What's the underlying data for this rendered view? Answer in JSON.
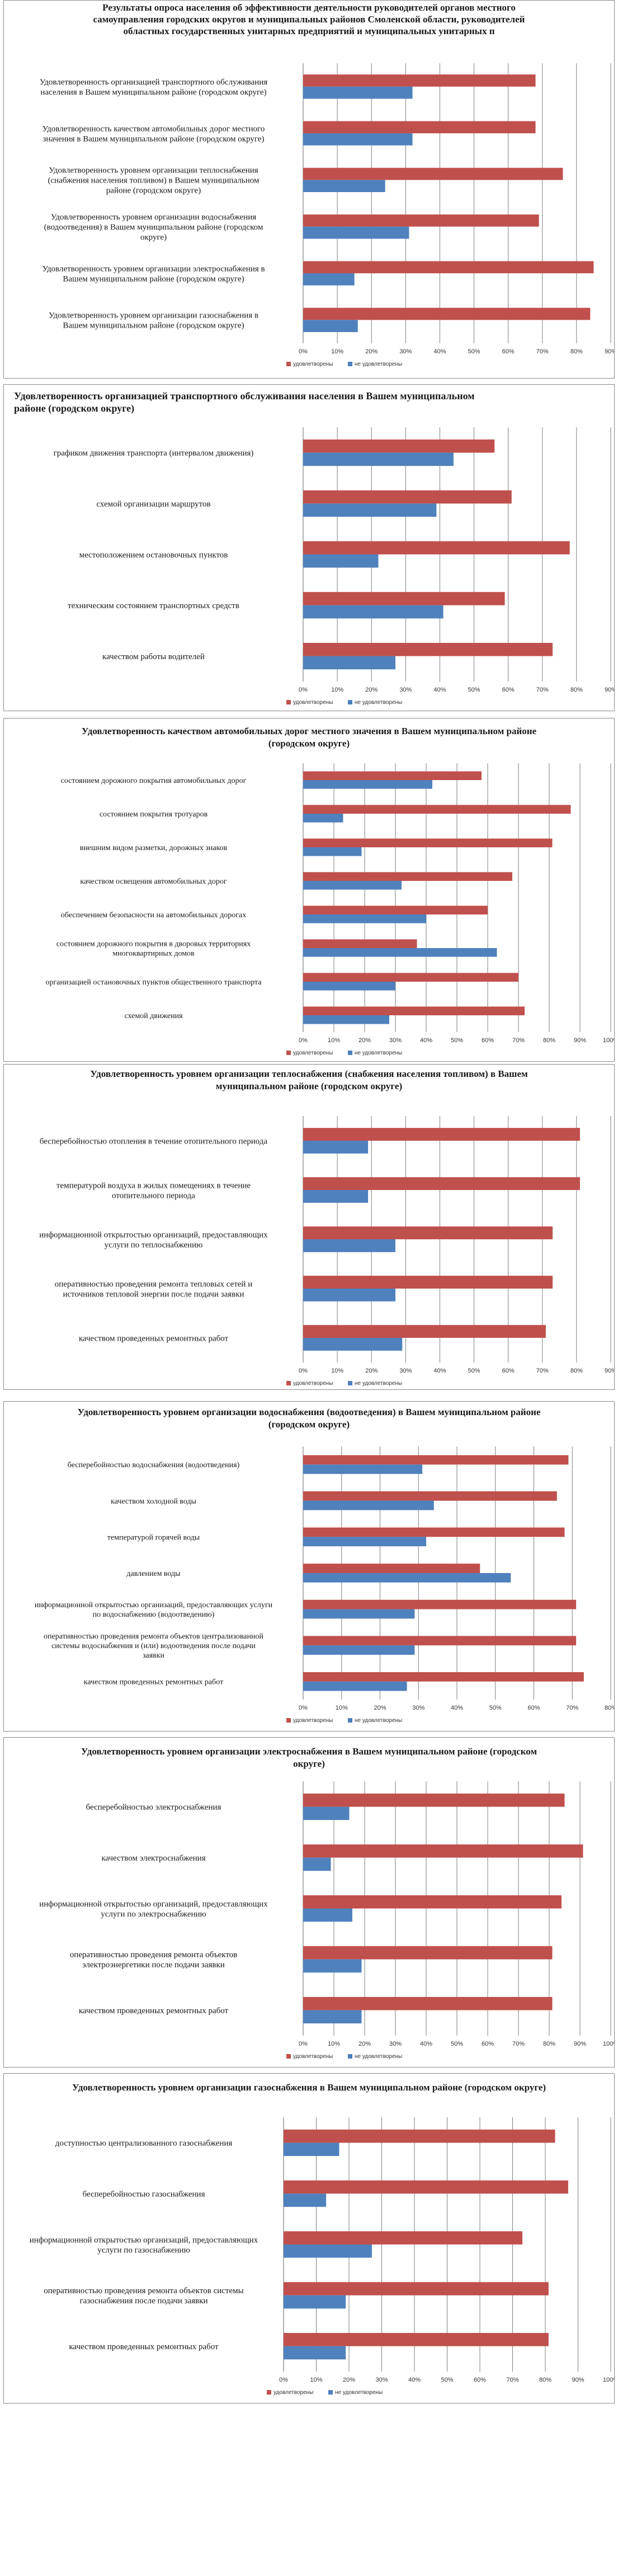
{
  "colors": {
    "satisfied": "#C0504D",
    "not_satisfied": "#4F81BD",
    "grid": "#7f7f7f",
    "axis": "#7f7f7f"
  },
  "legend": {
    "satisfied": "удовлетворены",
    "not_satisfied": "не удовлетворены"
  },
  "chart_data": [
    {
      "type": "bar",
      "orientation": "horizontal",
      "title": "Результаты опроса населения об эффективности деятельности руководителей органов местного самоуправления городских округов и муниципальных районов Смоленской области, руководителей областных государственных унитарных предприятий и муниципальных унитарных п",
      "categories": [
        "Удовлетворенность организацией транспортного обслуживания населения в Вашем муниципальном районе (городском округе)",
        "Удовлетворенность качеством автомобильных дорог местного значения в Вашем муниципальном районе (городском округе)",
        "Удовлетворенность уровнем организации теплоснабжения (снабжения населения топливом) в Вашем муниципальном районе (городском округе)",
        "Удовлетворенность уровнем организации водоснабжения (водоотведения) в Вашем муниципальном районе (городском округе)",
        "Удовлетворенность уровнем организации электроснабжения в Вашем муниципальном районе (городском округе)",
        "Удовлетворенность уровнем организации газоснабжения в Вашем муниципальном районе (городском округе)"
      ],
      "series": [
        {
          "name": "удовлетворены",
          "values": [
            68,
            68,
            76,
            69,
            85,
            84
          ]
        },
        {
          "name": "не удовлетворены",
          "values": [
            32,
            32,
            24,
            31,
            15,
            16
          ]
        }
      ],
      "xlim": [
        0,
        90
      ],
      "xticks": [
        "0%",
        "10%",
        "20%",
        "30%",
        "40%",
        "50%",
        "60%",
        "70%",
        "80%",
        "90%"
      ]
    },
    {
      "type": "bar",
      "orientation": "horizontal",
      "title": "Удовлетворенность организацией транспортного обслуживания населения в Вашем муниципальном районе (городском округе)",
      "categories": [
        "графиком движения транспорта (интервалом движения)",
        "схемой организации маршрутов",
        "местоположением остановочных пунктов",
        "техническим состоянием транспортных средств",
        "качеством работы водителей"
      ],
      "series": [
        {
          "name": "удовлетворены",
          "values": [
            56,
            61,
            78,
            59,
            73
          ]
        },
        {
          "name": "не удовлетворены",
          "values": [
            44,
            39,
            22,
            41,
            27
          ]
        }
      ],
      "xlim": [
        0,
        90
      ],
      "xticks": [
        "0%",
        "10%",
        "20%",
        "30%",
        "40%",
        "50%",
        "60%",
        "70%",
        "80%",
        "90%"
      ]
    },
    {
      "type": "bar",
      "orientation": "horizontal",
      "title": "Удовлетворенность качеством автомобильных дорог местного значения в Вашем муниципальном районе (городском округе)",
      "categories": [
        "состоянием дорожного покрытия автомобильных дорог",
        "состоянием покрытия тротуаров",
        "внешним видом разметки, дорожных знаков",
        "качеством освещения автомобильных дорог",
        "обеспечением безопасности на автомобильных дорогах",
        "состоянием дорожного покрытия в дворовых территориях многоквартирных домов",
        "организацией остановочных пунктов общественного транспорта",
        "схемой движения"
      ],
      "series": [
        {
          "name": "удовлетворены",
          "values": [
            58,
            87,
            81,
            68,
            60,
            37,
            70,
            72
          ]
        },
        {
          "name": "не удовлетворены",
          "values": [
            42,
            13,
            19,
            32,
            40,
            63,
            30,
            28
          ]
        }
      ],
      "xlim": [
        0,
        100
      ],
      "xticks": [
        "0%",
        "10%",
        "20%",
        "30%",
        "40%",
        "50%",
        "60%",
        "70%",
        "80%",
        "90%",
        "100%"
      ]
    },
    {
      "type": "bar",
      "orientation": "horizontal",
      "title": "Удовлетворенность уровнем организации теплоснабжения (снабжения населения топливом) в Вашем муниципальном районе (городском округе)",
      "categories": [
        "бесперебойностью отопления в течение отопительного периода",
        "температурой воздуха в жилых помещениях в течение отопительного периода",
        "информационной открытостью организаций, предоставляющих услуги по теплоснабжению",
        "оперативностью проведения ремонта тепловых сетей и источников тепловой энергии после подачи заявки",
        "качеством проведенных ремонтных работ"
      ],
      "series": [
        {
          "name": "удовлетворены",
          "values": [
            81,
            81,
            73,
            73,
            71
          ]
        },
        {
          "name": "не удовлетворены",
          "values": [
            19,
            19,
            27,
            27,
            29
          ]
        }
      ],
      "xlim": [
        0,
        90
      ],
      "xticks": [
        "0%",
        "10%",
        "20%",
        "30%",
        "40%",
        "50%",
        "60%",
        "70%",
        "80%",
        "90%"
      ]
    },
    {
      "type": "bar",
      "orientation": "horizontal",
      "title": "Удовлетворенность уровнем организации водоснабжения (водоотведения) в Вашем муниципальном районе (городском округе)",
      "categories": [
        "бесперебойностью водоснабжения (водоотведения)",
        "качеством холодной воды",
        "температурой горячей воды",
        "давлением воды",
        "информационной открытостью организаций, предоставляющих услуги по водоснабжению (водоотведению)",
        "оперативностью проведения ремонта объектов централизованной системы водоснабжения и (или) водоотведения после подачи заявки",
        "качеством проведенных ремонтных работ"
      ],
      "series": [
        {
          "name": "удовлетворены",
          "values": [
            69,
            66,
            68,
            46,
            71,
            71,
            73
          ]
        },
        {
          "name": "не удовлетворены",
          "values": [
            31,
            34,
            32,
            54,
            29,
            29,
            27
          ]
        }
      ],
      "xlim": [
        0,
        80
      ],
      "xticks": [
        "0%",
        "10%",
        "20%",
        "30%",
        "40%",
        "50%",
        "60%",
        "70%",
        "80%"
      ]
    },
    {
      "type": "bar",
      "orientation": "horizontal",
      "title": "Удовлетворенность уровнем организации электроснабжения в Вашем муниципальном районе (городском округе)",
      "categories": [
        "бесперебойностью электроснабжения",
        "качеством электроснабжения",
        "информационной открытостью организаций, предоставляющих услуги по электроснабжению",
        "оперативностью проведения ремонта объектов электроэнергетики после подачи заявки",
        "качеством проведенных ремонтных работ"
      ],
      "series": [
        {
          "name": "удовлетворены",
          "values": [
            85,
            91,
            84,
            81,
            81
          ]
        },
        {
          "name": "не удовлетворены",
          "values": [
            15,
            9,
            16,
            19,
            19
          ]
        }
      ],
      "xlim": [
        0,
        100
      ],
      "xticks": [
        "0%",
        "10%",
        "20%",
        "30%",
        "40%",
        "50%",
        "60%",
        "70%",
        "80%",
        "90%",
        "100%"
      ]
    },
    {
      "type": "bar",
      "orientation": "horizontal",
      "title": "Удовлетворенность уровнем организации газоснабжения в Вашем муниципальном районе (городском округе)",
      "categories": [
        "доступностью централизованного газоснабжения",
        "бесперебойностью газоснабжения",
        "информационной открытостью организаций, предоставляющих услуги по газоснабжению",
        "оперативностью проведения ремонта объектов системы газоснабжения после подачи заявки",
        "качеством проведенных ремонтных работ"
      ],
      "series": [
        {
          "name": "удовлетворены",
          "values": [
            83,
            87,
            73,
            81,
            81
          ]
        },
        {
          "name": "не удовлетворены",
          "values": [
            17,
            13,
            27,
            19,
            19
          ]
        }
      ],
      "xlim": [
        0,
        100
      ],
      "xticks": [
        "0%",
        "10%",
        "20%",
        "30%",
        "40%",
        "50%",
        "60%",
        "70%",
        "80%",
        "90%",
        "100%"
      ]
    }
  ]
}
